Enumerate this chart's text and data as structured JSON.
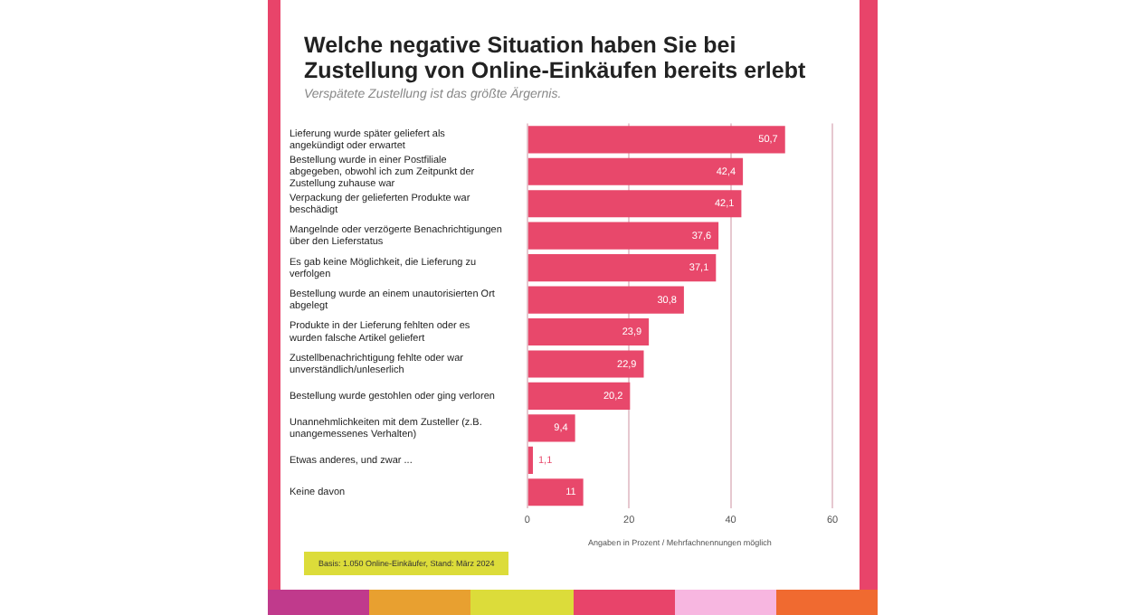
{
  "chart_data": {
    "type": "bar",
    "orientation": "horizontal",
    "title": "Welche negative Situation haben Sie bei Zustellung von Online-Einkäufen bereits erlebt",
    "subtitle": "Verspätete Zustellung ist das größte Ärgernis.",
    "xlabel": "Angaben in Prozent / Mehrfachnennungen möglich",
    "categories": [
      "Lieferung wurde später geliefert als angekündigt oder erwartet",
      "Bestellung wurde in einer Postfiliale abgegeben, obwohl ich zum Zeitpunkt der Zustellung zuhause war",
      "Verpackung der gelieferten Produkte war beschädigt",
      "Mangelnde oder verzögerte Benachrichtigungen über den Lieferstatus",
      "Es gab keine Möglichkeit, die Lieferung zu verfolgen",
      "Bestellung wurde an einem unautorisierten Ort abgelegt",
      "Produkte in der Lieferung fehlten oder es wurden falsche Artikel geliefert",
      "Zustellbenachrichtigung fehlte oder war unverständlich/unleserlich",
      "Bestellung wurde gestohlen oder ging verloren",
      "Unannehmlichkeiten mit dem Zusteller (z.B. unangemessenes Verhalten)",
      "Etwas anderes, und zwar ...",
      "Keine davon"
    ],
    "values": [
      50.7,
      42.4,
      42.1,
      37.6,
      37.1,
      30.8,
      23.9,
      22.9,
      20.2,
      9.4,
      1.1,
      11
    ],
    "value_labels": [
      "50,7",
      "42,4",
      "42,1",
      "37,6",
      "37,1",
      "30,8",
      "23,9",
      "22,9",
      "20,2",
      "9,4",
      "1,1",
      "11"
    ],
    "color": "#e8486b",
    "xlim": [
      0,
      60
    ],
    "xticks": [
      0,
      20,
      40,
      60
    ],
    "grid": "x",
    "legend": false,
    "annotations": [
      "Basis: 1.050 Online-Einkäufer, Stand: März 2024"
    ]
  }
}
